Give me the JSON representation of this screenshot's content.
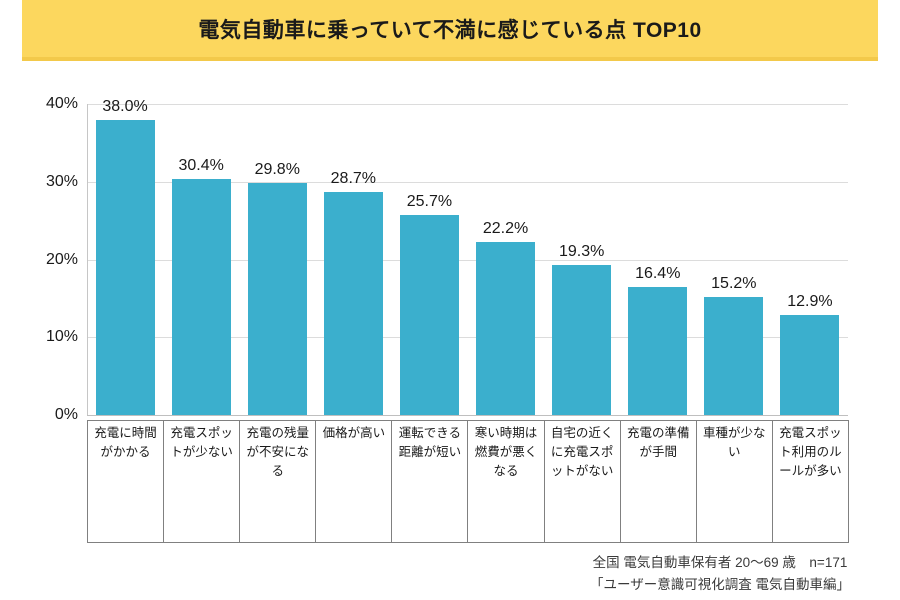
{
  "title": "電気自動車に乗っていて不満に感じている点 TOP10",
  "colors": {
    "banner_bg": "#FCD75E",
    "banner_edge": "#F3C94A",
    "bar": "#3BAFCD",
    "gridline": "#DCDCDC",
    "table_border": "#808080",
    "footer_text": "#3A3A3A"
  },
  "chart_data": {
    "type": "bar",
    "title": "電気自動車に乗っていて不満に感じている点 TOP10",
    "categories": [
      "充電に時間がかかる",
      "充電スポットが少ない",
      "充電の残量が不安になる",
      "価格が高い",
      "運転できる距離が短い",
      "寒い時期は燃費が悪くなる",
      "自宅の近くに充電スポットがない",
      "充電の準備が手間",
      "車種が少ない",
      "充電スポット利用のルールが多い"
    ],
    "values": [
      38.0,
      30.4,
      29.8,
      28.7,
      25.7,
      22.2,
      19.3,
      16.4,
      15.2,
      12.9
    ],
    "value_labels": [
      "38.0%",
      "30.4%",
      "29.8%",
      "28.7%",
      "25.7%",
      "22.2%",
      "19.3%",
      "16.4%",
      "15.2%",
      "12.9%"
    ],
    "xlabel": "",
    "ylabel": "",
    "ylim": [
      0,
      40
    ],
    "yticks": [
      {
        "value": 0,
        "label": "0%"
      },
      {
        "value": 10,
        "label": "10%"
      },
      {
        "value": 20,
        "label": "20%"
      },
      {
        "value": 30,
        "label": "30%"
      },
      {
        "value": 40,
        "label": "40%"
      }
    ],
    "grid": true,
    "legend": false
  },
  "footer": {
    "line1": "全国 電気自動車保有者 20～69 歳　n=171",
    "line2": "「ユーザー意識可視化調査 電気自動車編」"
  }
}
